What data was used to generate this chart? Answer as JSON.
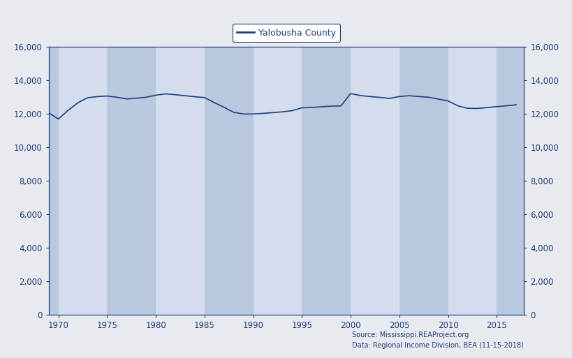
{
  "legend_label": "Yalobusha County",
  "line_color": "#1f3d7a",
  "background_outer": "#e8eaf0",
  "background_inner": "#c8d4e8",
  "background_stripe_dark": "#b8c8de",
  "background_stripe_light": "#d4dded",
  "ylim": [
    0,
    16000
  ],
  "yticks": [
    0,
    2000,
    4000,
    6000,
    8000,
    10000,
    12000,
    14000,
    16000
  ],
  "xlim": [
    1969.0,
    2017.8
  ],
  "xticks": [
    1970,
    1975,
    1980,
    1985,
    1990,
    1995,
    2000,
    2005,
    2010,
    2015
  ],
  "source_line1": "Source: Mississippi.REAProject.org",
  "source_line2": "Data: Regional Income Division, BEA (11-15-2018)",
  "tick_color": "#1f3d7a",
  "label_fontsize": 8.5,
  "years": [
    1969,
    1970,
    1971,
    1972,
    1973,
    1974,
    1975,
    1976,
    1977,
    1978,
    1979,
    1980,
    1981,
    1982,
    1983,
    1984,
    1985,
    1986,
    1987,
    1988,
    1989,
    1990,
    1991,
    1992,
    1993,
    1994,
    1995,
    1996,
    1997,
    1998,
    1999,
    2000,
    2001,
    2002,
    2003,
    2004,
    2005,
    2006,
    2007,
    2008,
    2009,
    2010,
    2011,
    2012,
    2013,
    2014,
    2015,
    2016,
    2017
  ],
  "population": [
    12050,
    11680,
    12200,
    12650,
    12950,
    13020,
    13050,
    12980,
    12880,
    12920,
    12980,
    13100,
    13180,
    13130,
    13070,
    13010,
    12960,
    12660,
    12380,
    12080,
    11980,
    11980,
    12020,
    12060,
    12110,
    12180,
    12350,
    12370,
    12410,
    12450,
    12460,
    13200,
    13080,
    13020,
    12970,
    12910,
    13020,
    13070,
    13020,
    12980,
    12870,
    12760,
    12470,
    12320,
    12310,
    12360,
    12420,
    12470,
    12530
  ],
  "stripe_ranges_dark": [
    [
      1969,
      1970
    ],
    [
      1975,
      1980
    ],
    [
      1985,
      1990
    ],
    [
      1995,
      2000
    ],
    [
      2005,
      2010
    ],
    [
      2015,
      2018
    ]
  ],
  "stripe_ranges_light": [
    [
      1970,
      1975
    ],
    [
      1980,
      1985
    ],
    [
      1990,
      1995
    ],
    [
      2000,
      2005
    ],
    [
      2010,
      2015
    ]
  ]
}
